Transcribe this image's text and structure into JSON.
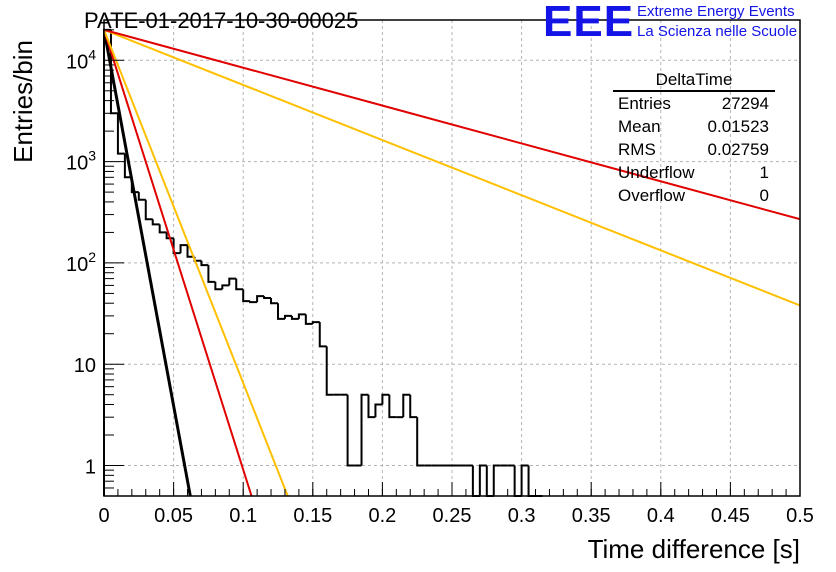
{
  "header": {
    "run_title": "PATE-01-2017-10-30-00025",
    "logo_text": "EEE",
    "logo_line1": "Extreme Energy Events",
    "logo_line2": "La Scienza nelle Scuole"
  },
  "stats_box": {
    "title": "DeltaTime",
    "rows": [
      {
        "label": "Entries",
        "value": "27294"
      },
      {
        "label": "Mean",
        "value": "0.01523"
      },
      {
        "label": "RMS",
        "value": "0.02759"
      },
      {
        "label": "Underflow",
        "value": "1"
      },
      {
        "label": "Overflow",
        "value": "0"
      }
    ]
  },
  "chart_data": {
    "type": "line",
    "title": "PATE-01-2017-10-30-00025",
    "xlabel": "Time difference [s]",
    "ylabel": "Entries/bin",
    "xlim": [
      0,
      0.5
    ],
    "ylim": [
      0.5,
      25000
    ],
    "y_scale": "log",
    "grid": true,
    "x_ticks": [
      "0",
      "0.05",
      "0.1",
      "0.15",
      "0.2",
      "0.25",
      "0.3",
      "0.35",
      "0.4",
      "0.45",
      "0.5"
    ],
    "x_tick_values": [
      0,
      0.05,
      0.1,
      0.15,
      0.2,
      0.25,
      0.3,
      0.35,
      0.4,
      0.45,
      0.5
    ],
    "y_ticks": [
      {
        "value": 10000,
        "base": "10",
        "exp": "4"
      },
      {
        "value": 1000,
        "base": "10",
        "exp": "3"
      },
      {
        "value": 100,
        "base": "10",
        "exp": "2"
      },
      {
        "value": 10,
        "base": "10",
        "exp": ""
      },
      {
        "value": 1,
        "base": "1",
        "exp": ""
      }
    ],
    "histogram": {
      "name": "DeltaTime",
      "color": "#000000",
      "bin_width": 0.005,
      "bin_start": 0,
      "counts": [
        20000,
        3000,
        1200,
        700,
        500,
        420,
        270,
        240,
        200,
        175,
        125,
        150,
        115,
        105,
        95,
        65,
        55,
        60,
        70,
        55,
        42,
        41,
        47,
        45,
        40,
        28,
        30,
        28,
        31,
        25,
        26,
        15,
        5,
        5,
        5,
        1,
        1,
        5,
        3,
        4,
        5,
        3,
        3,
        5,
        3,
        1,
        1,
        1,
        1,
        1,
        1,
        1,
        1,
        0,
        1,
        0,
        1,
        1,
        1,
        0,
        1,
        0,
        0
      ]
    },
    "series": [
      {
        "color": "#000000",
        "x": [
          0,
          0.062
        ],
        "y": [
          20000,
          0.5
        ]
      },
      {
        "color": "#e00000",
        "x": [
          0,
          0.106
        ],
        "y": [
          20000,
          0.5
        ]
      },
      {
        "color": "#ffc000",
        "x": [
          0,
          0.132
        ],
        "y": [
          20000,
          0.5
        ]
      },
      {
        "color": "#ffc000",
        "x": [
          0,
          0.5
        ],
        "y": [
          20000,
          38
        ]
      },
      {
        "color": "#e00000",
        "x": [
          0,
          0.5
        ],
        "y": [
          20000,
          270
        ]
      }
    ]
  }
}
